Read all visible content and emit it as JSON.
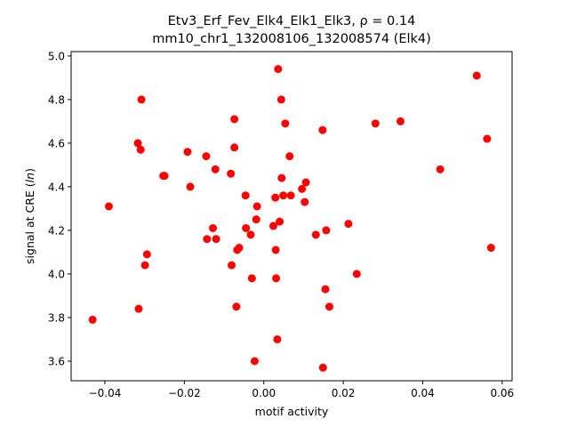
{
  "chart_data": {
    "type": "scatter",
    "title_line1": "Etv3_Erf_Fev_Elk4_Elk1_Elk3, ρ = 0.14",
    "title_line2": "mm10_chr1_132008106_132008574 (Elk4)",
    "xlabel": "motif activity",
    "ylabel": "signal at CRE (ln)",
    "xlim": [
      -0.0485,
      0.0625
    ],
    "ylim": [
      3.51,
      5.02
    ],
    "xticks": [
      -0.04,
      -0.02,
      0.0,
      0.02,
      0.04,
      0.06
    ],
    "xtick_labels": [
      "−0.04",
      "−0.02",
      "0.00",
      "0.02",
      "0.04",
      "0.06"
    ],
    "yticks": [
      3.6,
      3.8,
      4.0,
      4.2,
      4.4,
      4.6,
      4.8,
      5.0
    ],
    "ytick_labels": [
      "3.6",
      "3.8",
      "4.0",
      "4.2",
      "4.4",
      "4.6",
      "4.8",
      "5.0"
    ],
    "grid": false,
    "marker_color": "#ff0000",
    "points": [
      {
        "x": -0.0431,
        "y": 3.79
      },
      {
        "x": -0.039,
        "y": 4.31
      },
      {
        "x": -0.0315,
        "y": 3.84
      },
      {
        "x": -0.0317,
        "y": 4.6
      },
      {
        "x": -0.031,
        "y": 4.57
      },
      {
        "x": -0.0308,
        "y": 4.8
      },
      {
        "x": -0.0299,
        "y": 4.04
      },
      {
        "x": -0.0294,
        "y": 4.09
      },
      {
        "x": -0.0253,
        "y": 4.45
      },
      {
        "x": -0.025,
        "y": 4.45
      },
      {
        "x": -0.0192,
        "y": 4.56
      },
      {
        "x": -0.0185,
        "y": 4.4
      },
      {
        "x": -0.0145,
        "y": 4.54
      },
      {
        "x": -0.0143,
        "y": 4.16
      },
      {
        "x": -0.0128,
        "y": 4.21
      },
      {
        "x": -0.0122,
        "y": 4.48
      },
      {
        "x": -0.012,
        "y": 4.16
      },
      {
        "x": -0.0083,
        "y": 4.46
      },
      {
        "x": -0.0081,
        "y": 4.04
      },
      {
        "x": -0.0074,
        "y": 4.71
      },
      {
        "x": -0.0074,
        "y": 4.58
      },
      {
        "x": -0.0069,
        "y": 3.85
      },
      {
        "x": -0.0067,
        "y": 4.11
      },
      {
        "x": -0.0062,
        "y": 4.12
      },
      {
        "x": -0.0046,
        "y": 4.36
      },
      {
        "x": -0.0045,
        "y": 4.21
      },
      {
        "x": -0.0033,
        "y": 4.18
      },
      {
        "x": -0.003,
        "y": 3.98
      },
      {
        "x": -0.0023,
        "y": 3.6
      },
      {
        "x": -0.0019,
        "y": 4.25
      },
      {
        "x": -0.0017,
        "y": 4.31
      },
      {
        "x": 0.0024,
        "y": 4.22
      },
      {
        "x": 0.0029,
        "y": 4.35
      },
      {
        "x": 0.003,
        "y": 4.11
      },
      {
        "x": 0.0031,
        "y": 3.98
      },
      {
        "x": 0.0034,
        "y": 3.7
      },
      {
        "x": 0.0036,
        "y": 4.94
      },
      {
        "x": 0.004,
        "y": 4.24
      },
      {
        "x": 0.0044,
        "y": 4.8
      },
      {
        "x": 0.0045,
        "y": 4.44
      },
      {
        "x": 0.0049,
        "y": 4.36
      },
      {
        "x": 0.0054,
        "y": 4.69
      },
      {
        "x": 0.0065,
        "y": 4.54
      },
      {
        "x": 0.0068,
        "y": 4.36
      },
      {
        "x": 0.0096,
        "y": 4.39
      },
      {
        "x": 0.0103,
        "y": 4.33
      },
      {
        "x": 0.0106,
        "y": 4.42
      },
      {
        "x": 0.0131,
        "y": 4.18
      },
      {
        "x": 0.0148,
        "y": 4.66
      },
      {
        "x": 0.0149,
        "y": 3.57
      },
      {
        "x": 0.0155,
        "y": 3.93
      },
      {
        "x": 0.0157,
        "y": 4.2
      },
      {
        "x": 0.0165,
        "y": 3.85
      },
      {
        "x": 0.0213,
        "y": 4.23
      },
      {
        "x": 0.0234,
        "y": 4.0
      },
      {
        "x": 0.0281,
        "y": 4.69
      },
      {
        "x": 0.0344,
        "y": 4.7
      },
      {
        "x": 0.0444,
        "y": 4.48
      },
      {
        "x": 0.0536,
        "y": 4.91
      },
      {
        "x": 0.0562,
        "y": 4.62
      },
      {
        "x": 0.0572,
        "y": 4.12
      }
    ]
  }
}
